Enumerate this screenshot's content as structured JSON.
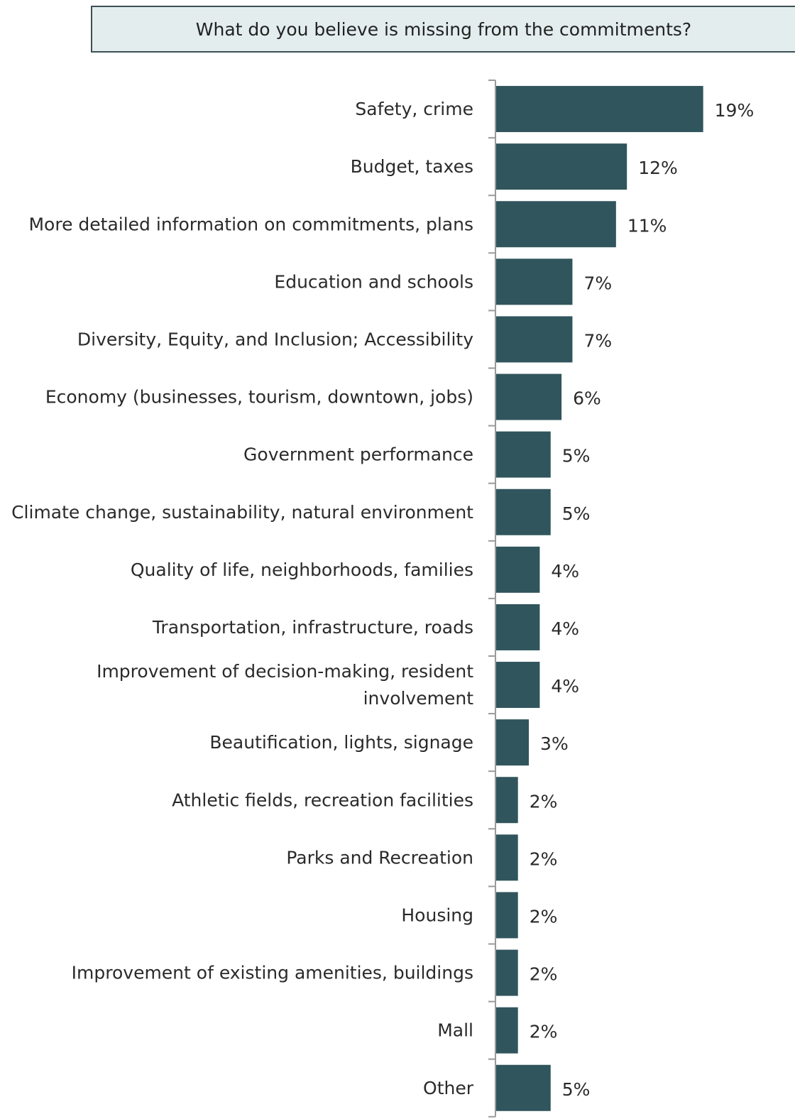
{
  "colors": {
    "bar": "#30555c",
    "title_bg": "#e3eded",
    "title_border": "#3c4f57",
    "axis": "#9a9a9a",
    "text": "#2a2a2a"
  },
  "chart_data": {
    "type": "bar",
    "orientation": "horizontal",
    "title": "What do you believe is missing from the commitments?",
    "xlabel": "",
    "ylabel": "",
    "xlim": [
      0,
      20
    ],
    "grid": false,
    "legend": "none",
    "categories": [
      "Safety, crime",
      "Budget, taxes",
      "More detailed information on commitments, plans",
      "Education and schools",
      "Diversity, Equity, and Inclusion; Accessibility",
      "Economy (businesses, tourism, downtown, jobs)",
      "Government performance",
      "Climate change, sustainability, natural environment",
      "Quality of life, neighborhoods, families",
      "Transportation, infrastructure, roads",
      "Improvement of decision-making, resident involvement",
      "Beautification, lights, signage",
      "Athletic fields, recreation facilities",
      "Parks and Recreation",
      "Housing",
      "Improvement of existing amenities, buildings",
      "Mall",
      "Other"
    ],
    "category_lines": [
      [
        "Safety, crime"
      ],
      [
        "Budget, taxes"
      ],
      [
        "More detailed information on commitments, plans"
      ],
      [
        "Education and schools"
      ],
      [
        "Diversity, Equity, and Inclusion; Accessibility"
      ],
      [
        "Economy (businesses, tourism, downtown, jobs)"
      ],
      [
        "Government performance"
      ],
      [
        "Climate change, sustainability, natural environment"
      ],
      [
        "Quality of life, neighborhoods, families"
      ],
      [
        "Transportation, infrastructure, roads"
      ],
      [
        "Improvement of decision-making, resident",
        "involvement"
      ],
      [
        "Beautification, lights, signage"
      ],
      [
        "Athletic fields, recreation facilities"
      ],
      [
        "Parks and Recreation"
      ],
      [
        "Housing"
      ],
      [
        "Improvement of existing amenities, buildings"
      ],
      [
        "Mall"
      ],
      [
        "Other"
      ]
    ],
    "values": [
      19,
      12,
      11,
      7,
      7,
      6,
      5,
      5,
      4,
      4,
      4,
      3,
      2,
      2,
      2,
      2,
      2,
      5
    ],
    "data_labels": [
      "19%",
      "12%",
      "11%",
      "7%",
      "7%",
      "6%",
      "5%",
      "5%",
      "4%",
      "4%",
      "4%",
      "3%",
      "2%",
      "2%",
      "2%",
      "2%",
      "2%",
      "5%"
    ]
  }
}
